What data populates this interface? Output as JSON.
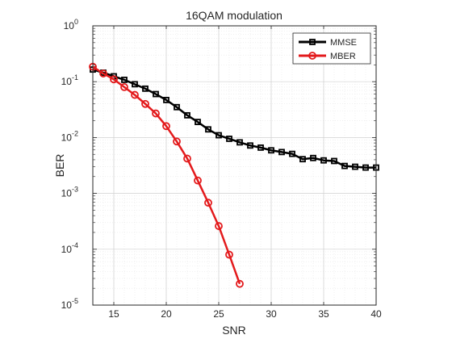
{
  "chart_data": {
    "type": "line",
    "title": "16QAM modulation",
    "xlabel": "SNR",
    "ylabel": "BER",
    "xlim": [
      13,
      40
    ],
    "ylim": [
      1e-05,
      1
    ],
    "yscale": "log",
    "grid": true,
    "minor_grid": true,
    "legend_position": "top-right",
    "x_ticks": [
      15,
      20,
      25,
      30,
      35,
      40
    ],
    "y_ticks": [
      {
        "value": 1e-05,
        "base": "10",
        "exp": "-5"
      },
      {
        "value": 0.0001,
        "base": "10",
        "exp": "-4"
      },
      {
        "value": 0.001,
        "base": "10",
        "exp": "-3"
      },
      {
        "value": 0.01,
        "base": "10",
        "exp": "-2"
      },
      {
        "value": 0.1,
        "base": "10",
        "exp": "-1"
      },
      {
        "value": 1,
        "base": "10",
        "exp": "0"
      }
    ],
    "series": [
      {
        "name": "MMSE",
        "color": "#000000",
        "marker": "square",
        "x": [
          13,
          14,
          15,
          16,
          17,
          18,
          19,
          20,
          21,
          22,
          23,
          24,
          25,
          26,
          27,
          28,
          29,
          30,
          31,
          32,
          33,
          34,
          35,
          36,
          37,
          38,
          39,
          40
        ],
        "y": [
          0.165,
          0.145,
          0.125,
          0.108,
          0.09,
          0.075,
          0.06,
          0.047,
          0.035,
          0.025,
          0.019,
          0.014,
          0.011,
          0.0095,
          0.0082,
          0.0072,
          0.0066,
          0.0059,
          0.0055,
          0.0051,
          0.0041,
          0.0043,
          0.0039,
          0.0038,
          0.0031,
          0.003,
          0.0029,
          0.0029
        ]
      },
      {
        "name": "MBER",
        "color": "#e31a1c",
        "marker": "circle",
        "x": [
          13,
          14,
          15,
          16,
          17,
          18,
          19,
          20,
          21,
          22,
          23,
          24,
          25,
          26,
          27
        ],
        "y": [
          0.185,
          0.14,
          0.11,
          0.08,
          0.058,
          0.04,
          0.027,
          0.016,
          0.0085,
          0.0042,
          0.0017,
          0.00068,
          0.00026,
          8e-05,
          2.4e-05
        ]
      }
    ]
  }
}
